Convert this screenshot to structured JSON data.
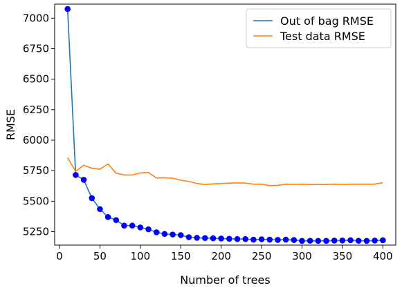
{
  "chart_data": {
    "type": "line",
    "xlabel": "Number of trees",
    "ylabel": "RMSE",
    "xlim": [
      -6,
      416
    ],
    "ylim": [
      5140,
      7115
    ],
    "xticks": [
      0,
      50,
      100,
      150,
      200,
      250,
      300,
      350,
      400
    ],
    "yticks": [
      5250,
      5500,
      5750,
      6000,
      6250,
      6500,
      6750,
      7000
    ],
    "grid": false,
    "legend_position": "top-right",
    "x": [
      10,
      20,
      30,
      40,
      50,
      60,
      70,
      80,
      90,
      100,
      110,
      120,
      130,
      140,
      150,
      160,
      170,
      180,
      190,
      200,
      210,
      220,
      230,
      240,
      250,
      260,
      270,
      280,
      290,
      300,
      310,
      320,
      330,
      340,
      350,
      360,
      370,
      380,
      390,
      400
    ],
    "series": [
      {
        "name": "Out of bag RMSE",
        "color": "#1f77b4",
        "marker_color": "#0000ff",
        "markers": true,
        "values": [
          7075,
          5715,
          5675,
          5525,
          5435,
          5370,
          5345,
          5300,
          5300,
          5285,
          5270,
          5245,
          5232,
          5227,
          5222,
          5205,
          5200,
          5198,
          5196,
          5194,
          5192,
          5190,
          5190,
          5185,
          5188,
          5185,
          5183,
          5185,
          5182,
          5175,
          5176,
          5175,
          5175,
          5177,
          5178,
          5180,
          5176,
          5175,
          5177,
          5180
        ]
      },
      {
        "name": "Test data RMSE",
        "color": "#ff7f0e",
        "markers": false,
        "values": [
          5855,
          5745,
          5795,
          5770,
          5762,
          5805,
          5730,
          5715,
          5715,
          5732,
          5735,
          5690,
          5692,
          5688,
          5672,
          5662,
          5645,
          5637,
          5642,
          5645,
          5648,
          5650,
          5648,
          5640,
          5640,
          5628,
          5630,
          5640,
          5638,
          5640,
          5637,
          5636,
          5637,
          5640,
          5638,
          5640,
          5640,
          5640,
          5640,
          5652
        ]
      }
    ]
  }
}
